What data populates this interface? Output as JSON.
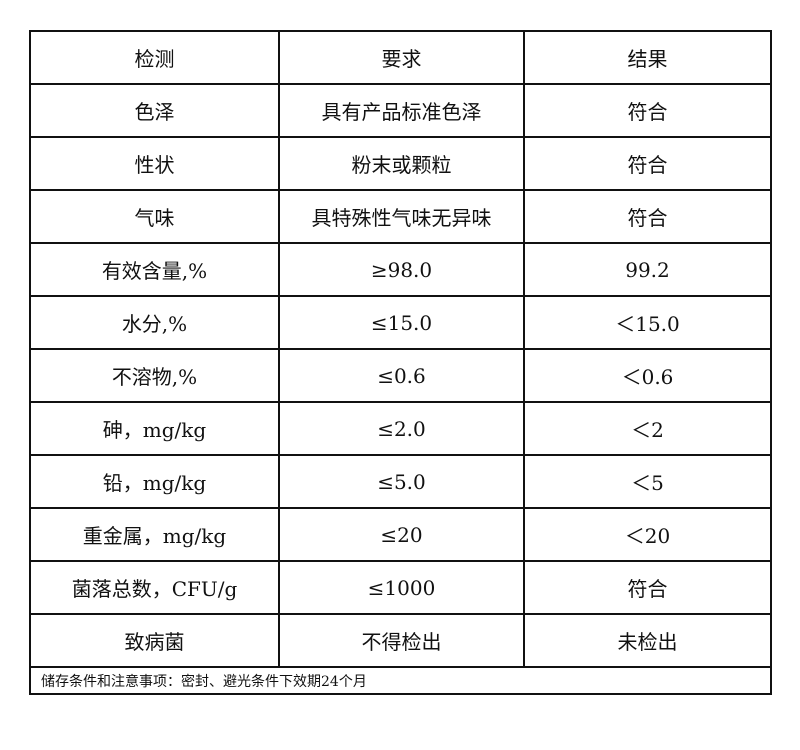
{
  "headers": [
    "检测",
    "要求",
    "结果"
  ],
  "rows": [
    [
      "色泽",
      "具有产品标准色泽",
      "符合"
    ],
    [
      "性状",
      "粉末或颗粒",
      "符合"
    ],
    [
      "气味",
      "具特殊性气味无异味",
      "符合"
    ],
    [
      "有效含量,%",
      "≥98.0",
      "99.2"
    ],
    [
      "水分,%",
      "≤15.0",
      "＜15.0"
    ],
    [
      "不溶物,%",
      "≤0.6",
      "＜0.6"
    ],
    [
      "砷，mg/kg",
      "≤2.0",
      "＜2"
    ],
    [
      "铅，mg/kg",
      "≤5.0",
      "＜5"
    ],
    [
      "重金属，mg/kg",
      "≤20",
      "＜20"
    ],
    [
      "菌落总数，CFU/g",
      "≤1000",
      "符合"
    ],
    [
      "致病菌",
      "不得检出",
      "未检出"
    ]
  ],
  "footer": "储存条件和注意事项：密封、避光条件下效期24个月"
}
